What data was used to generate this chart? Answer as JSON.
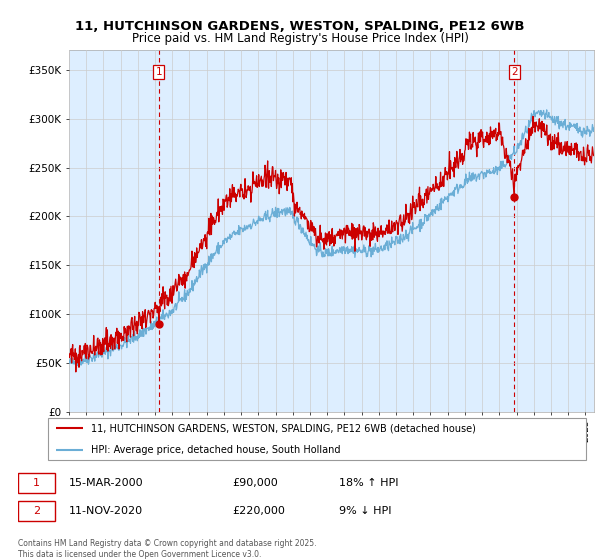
{
  "title_line1": "11, HUTCHINSON GARDENS, WESTON, SPALDING, PE12 6WB",
  "title_line2": "Price paid vs. HM Land Registry's House Price Index (HPI)",
  "ylabel_ticks": [
    "£0",
    "£50K",
    "£100K",
    "£150K",
    "£200K",
    "£250K",
    "£300K",
    "£350K"
  ],
  "ytick_values": [
    0,
    50000,
    100000,
    150000,
    200000,
    250000,
    300000,
    350000
  ],
  "ylim": [
    0,
    370000
  ],
  "sale1_date": "15-MAR-2000",
  "sale1_price": 90000,
  "sale1_hpi": "18% ↑ HPI",
  "sale1_x": 2000.21,
  "sale1_y": 90000,
  "sale2_date": "11-NOV-2020",
  "sale2_price": 220000,
  "sale2_hpi": "9% ↓ HPI",
  "sale2_x": 2020.86,
  "sale2_y": 220000,
  "legend_line1": "11, HUTCHINSON GARDENS, WESTON, SPALDING, PE12 6WB (detached house)",
  "legend_line2": "HPI: Average price, detached house, South Holland",
  "footer": "Contains HM Land Registry data © Crown copyright and database right 2025.\nThis data is licensed under the Open Government Licence v3.0.",
  "house_color": "#cc0000",
  "hpi_color": "#6baed6",
  "vline_color": "#cc0000",
  "grid_color": "#cccccc",
  "chart_bg_color": "#ddeeff",
  "background_color": "#ffffff",
  "xmin": 1995,
  "xmax": 2025.5,
  "n_points": 1000
}
